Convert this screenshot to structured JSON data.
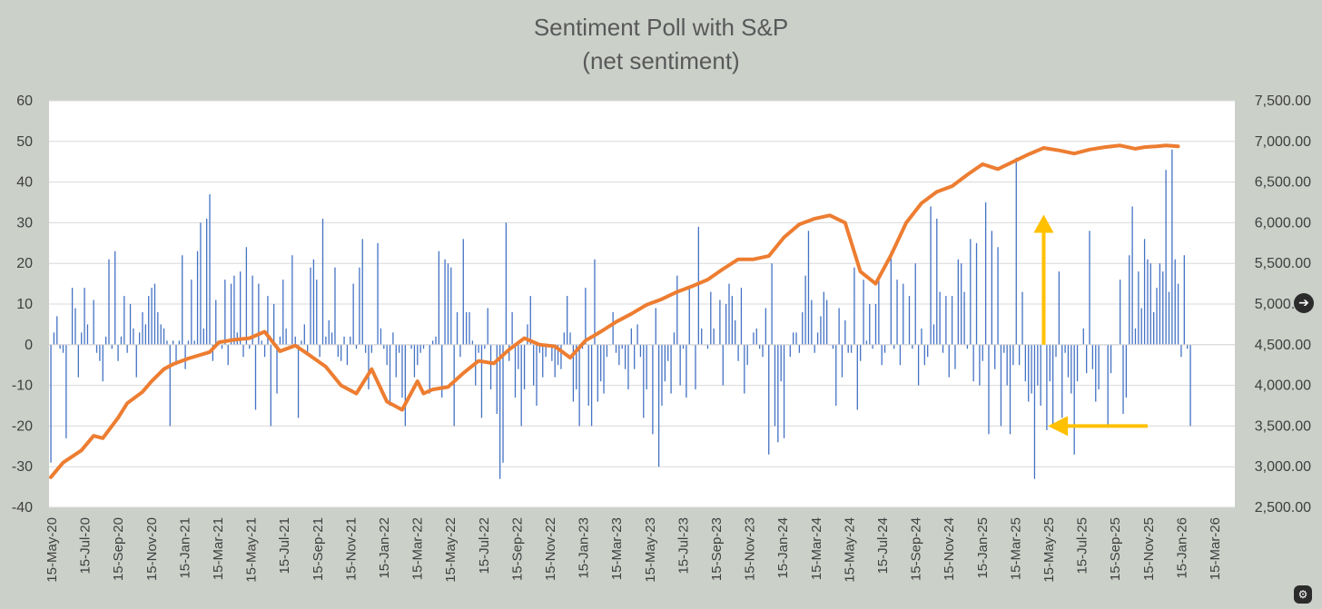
{
  "chart_data": {
    "type": "bar+line",
    "title": "Sentiment Poll with S&P",
    "subtitle": "(net sentiment)",
    "left_axis": {
      "min": -40,
      "max": 60,
      "step": 10
    },
    "right_axis": {
      "min": 2500,
      "max": 7500,
      "step": 500,
      "labels": [
        "2,500.00",
        "3,000.00",
        "3,500.00",
        "4,000.00",
        "4,500.00",
        "5,000.00",
        "5,500.00",
        "6,000.00",
        "6,500.00",
        "7,000.00",
        "7,500.00"
      ]
    },
    "x_tick_labels": [
      "15-May-20",
      "15-Jul-20",
      "15-Sep-20",
      "15-Nov-20",
      "15-Jan-21",
      "15-Mar-21",
      "15-May-21",
      "15-Jul-21",
      "15-Sep-21",
      "15-Nov-21",
      "15-Jan-22",
      "15-Mar-22",
      "15-May-22",
      "15-Jul-22",
      "15-Sep-22",
      "15-Nov-22",
      "15-Jan-23",
      "15-Mar-23",
      "15-May-23",
      "15-Jul-23",
      "15-Sep-23",
      "15-Nov-23",
      "15-Jan-24",
      "15-Mar-24",
      "15-May-24",
      "15-Jul-24",
      "15-Sep-24",
      "15-Nov-24",
      "15-Jan-25",
      "15-Mar-25",
      "15-May-25",
      "15-Jul-25",
      "15-Sep-25",
      "15-Nov-25",
      "15-Jan-26",
      "15-Mar-26"
    ],
    "series": [
      {
        "name": "Net sentiment",
        "type": "bar",
        "axis": "left",
        "color": "#4472c4",
        "values": [
          -29,
          3,
          7,
          -1,
          -2,
          -23,
          0,
          14,
          9,
          -8,
          3,
          14,
          5,
          0,
          11,
          -2,
          -4,
          -9,
          2,
          21,
          -1,
          23,
          -4,
          2,
          12,
          -2,
          10,
          4,
          -8,
          3,
          8,
          5,
          12,
          14,
          15,
          8,
          5,
          4,
          1,
          -20,
          1,
          -5,
          1,
          22,
          -6,
          1,
          16,
          1,
          23,
          30,
          4,
          31,
          37,
          -4,
          11,
          0,
          -1,
          16,
          -5,
          15,
          17,
          3,
          18,
          -3,
          24,
          -1,
          17,
          -16,
          15,
          1,
          -3,
          12,
          -20,
          10,
          -12,
          2,
          16,
          4,
          0,
          22,
          2,
          -18,
          1,
          5,
          -2,
          19,
          21,
          16,
          -3,
          31,
          2,
          6,
          3,
          19,
          -3,
          -4,
          2,
          -5,
          2,
          15,
          -1,
          19,
          26,
          -2,
          -11,
          -2,
          0,
          25,
          4,
          -1,
          -5,
          -15,
          3,
          -8,
          -2,
          -13,
          -20,
          0,
          -1,
          -8,
          -5,
          -2,
          -1,
          0,
          -12,
          1,
          2,
          23,
          -13,
          21,
          20,
          19,
          -20,
          8,
          -3,
          26,
          8,
          8,
          1,
          -10,
          -2,
          -18,
          -1,
          9,
          -11,
          0,
          -17,
          -33,
          -29,
          30,
          -4,
          8,
          -13,
          -6,
          -20,
          -11,
          5,
          12,
          -10,
          -15,
          -2,
          -8,
          -3,
          0,
          -4,
          -8,
          -5,
          -6,
          3,
          12,
          3,
          -14,
          -11,
          -20,
          -1,
          14,
          -15,
          -20,
          21,
          -14,
          -9,
          -12,
          -3,
          0,
          8,
          -2,
          -5,
          -1,
          -6,
          -11,
          4,
          -6,
          5,
          -3,
          -18,
          -11,
          0,
          -22,
          9,
          -30,
          -15,
          -9,
          -4,
          -12,
          3,
          17,
          -10,
          -1,
          -13,
          14,
          0,
          -11,
          29,
          4,
          0,
          -1,
          13,
          4,
          0,
          11,
          -10,
          10,
          15,
          12,
          6,
          -4,
          14,
          -12,
          -5,
          0,
          3,
          4,
          -1,
          -3,
          9,
          -27,
          20,
          -20,
          -24,
          -9,
          -23,
          0,
          -3,
          3,
          3,
          -2,
          8,
          17,
          28,
          11,
          -2,
          3,
          7,
          13,
          11,
          0,
          -1,
          -15,
          9,
          -8,
          6,
          -2,
          -2,
          19,
          -16,
          -4,
          16,
          1,
          10,
          -1,
          10,
          17,
          -5,
          -2,
          0,
          23,
          -1,
          16,
          -5,
          15,
          0,
          12,
          -1,
          20,
          -10,
          4,
          -5,
          -3,
          34,
          5,
          31,
          13,
          -2,
          12,
          -8,
          12,
          -6,
          21,
          20,
          13,
          -1,
          26,
          -9,
          25,
          -10,
          -4,
          35,
          -22,
          28,
          -6,
          24,
          -20,
          -2,
          -10,
          -22,
          -5,
          46,
          -5,
          13,
          -9,
          -14,
          -12,
          -33,
          -10,
          -15,
          18,
          -21,
          -9,
          -20,
          -3,
          18,
          -18,
          -2,
          -8,
          -12,
          -27,
          -9,
          0,
          4,
          -7,
          28,
          -6,
          -14,
          -11,
          0,
          0,
          -20,
          -7,
          0,
          0,
          16,
          -17,
          -13,
          22,
          34,
          4,
          18,
          9,
          26,
          21,
          20,
          8,
          14,
          20,
          18,
          43,
          13,
          48,
          21,
          15,
          -3,
          22,
          -1,
          -20
        ],
        "values_note": "weekly, approx. 15-May-20 to 26-Jan-26"
      },
      {
        "name": "S&P 500",
        "type": "line",
        "axis": "right",
        "color": "#ed7d31",
        "x_index": [
          0,
          4,
          10,
          14,
          17,
          22,
          25,
          30,
          33,
          37,
          40,
          45,
          52,
          55,
          60,
          65,
          70,
          75,
          80,
          84,
          90,
          95,
          100,
          105,
          110,
          115,
          120,
          122,
          125,
          130,
          135,
          140,
          145,
          150,
          155,
          160,
          165,
          170,
          175,
          180,
          185,
          190,
          195,
          200,
          205,
          210,
          215,
          220,
          225,
          230,
          235,
          240,
          245,
          250,
          255,
          260,
          265,
          270,
          275,
          280,
          285,
          290,
          295,
          300,
          305,
          310,
          315,
          320,
          325,
          330,
          335,
          340,
          345,
          350,
          355,
          358,
          362,
          365,
          369
        ],
        "values": [
          2870,
          3050,
          3200,
          3380,
          3350,
          3600,
          3780,
          3920,
          4050,
          4200,
          4260,
          4330,
          4410,
          4530,
          4560,
          4580,
          4660,
          4420,
          4490,
          4390,
          4230,
          4000,
          3900,
          4200,
          3800,
          3700,
          4050,
          3900,
          3950,
          3980,
          4150,
          4300,
          4270,
          4440,
          4580,
          4500,
          4480,
          4340,
          4550,
          4660,
          4780,
          4880,
          4990,
          5060,
          5150,
          5220,
          5300,
          5430,
          5550,
          5550,
          5590,
          5820,
          5980,
          6050,
          6090,
          6000,
          5400,
          5250,
          5600,
          6000,
          6240,
          6380,
          6450,
          6590,
          6720,
          6660,
          6750,
          6840,
          6920,
          6890,
          6850,
          6900,
          6930,
          6950,
          6910,
          6930,
          6940,
          6950,
          6940
        ]
      }
    ],
    "annotations": [
      {
        "type": "arrow",
        "direction": "up",
        "color": "#ffc000",
        "from": {
          "x": "mid-Jul-25",
          "y": 4500
        },
        "to": {
          "x": "mid-Jul-25",
          "y": 6100
        }
      },
      {
        "type": "arrow",
        "direction": "left",
        "color": "#ffc000",
        "from": {
          "x": "15-Jan-26",
          "y": -20
        },
        "to": {
          "x": "15-Jul-25",
          "y": -20
        }
      }
    ]
  },
  "controls": {
    "next_icon": "arrow-right-icon",
    "bottom_icon": "chart-settings-icon",
    "next_glyph": "➔",
    "bottom_glyph": "⚙"
  }
}
